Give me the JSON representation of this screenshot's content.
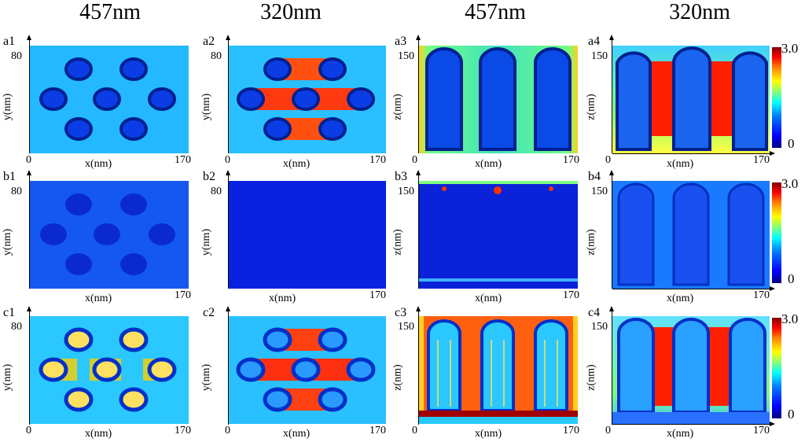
{
  "column_titles": [
    "457nm",
    "320nm",
    "457nm",
    "320nm"
  ],
  "panel_labels": {
    "a1": "a1",
    "a2": "a2",
    "a3": "a3",
    "a4": "a4",
    "b1": "b1",
    "b2": "b2",
    "b3": "b3",
    "b4": "b4",
    "c1": "c1",
    "c2": "c2",
    "c3": "c3",
    "c4": "c4"
  },
  "axes": {
    "xlabel": "x(nm)",
    "ylabel_xy": "y(nm)",
    "ylabel_xz": "z(nm)",
    "x_min": "0",
    "x_max": "170",
    "y_max": "80",
    "z_max": "150"
  },
  "colorbar": {
    "max": "3.0",
    "min": "0"
  },
  "colors": {
    "low": "#00007f",
    "mid": "#00ffff",
    "high": "#ff0000"
  }
}
